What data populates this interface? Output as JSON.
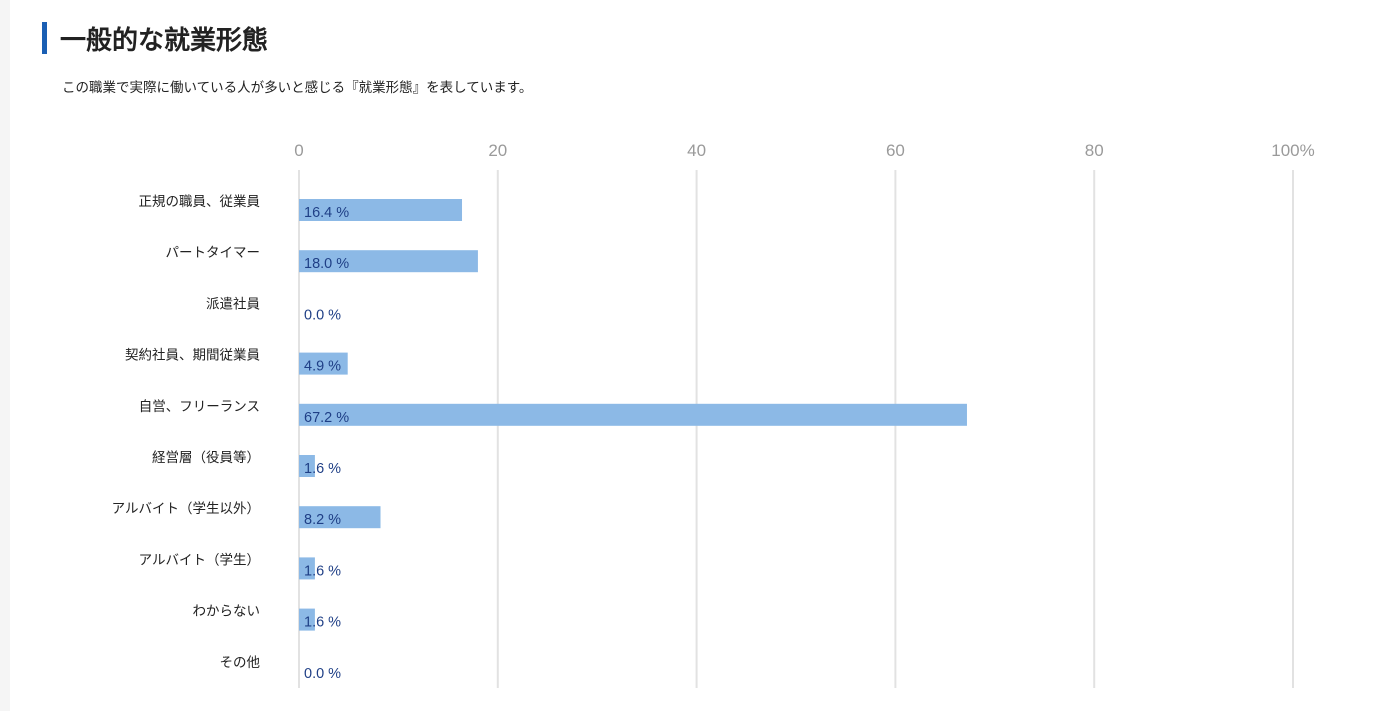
{
  "section": {
    "title": "一般的な就業形態",
    "description": "この職業で実際に働いている人が多いと感じる『就業形態』を表しています。"
  },
  "chart_data": {
    "type": "bar",
    "orientation": "horizontal",
    "categories": [
      "正規の職員、従業員",
      "パートタイマー",
      "派遣社員",
      "契約社員、期間従業員",
      "自営、フリーランス",
      "経営層（役員等）",
      "アルバイト（学生以外）",
      "アルバイト（学生）",
      "わからない",
      "その他"
    ],
    "values": [
      16.4,
      18.0,
      0.0,
      4.9,
      67.2,
      1.6,
      8.2,
      1.6,
      1.6,
      0.0
    ],
    "value_labels": [
      "16.4 %",
      "18.0 %",
      "0.0 %",
      "4.9 %",
      "67.2 %",
      "1.6 %",
      "8.2 %",
      "1.6 %",
      "1.6 %",
      "0.0 %"
    ],
    "x_ticks": [
      0,
      20,
      40,
      60,
      80,
      100
    ],
    "x_tick_labels": [
      "0",
      "20",
      "40",
      "60",
      "80",
      "100%"
    ],
    "xlim": [
      0,
      100
    ],
    "grid": true,
    "colors": {
      "bar": "#8cb9e6",
      "grid": "#e2e2e2",
      "value_text": "#1f3f86",
      "tick_text": "#9a9a9a",
      "accent": "#1a5fb4"
    }
  }
}
